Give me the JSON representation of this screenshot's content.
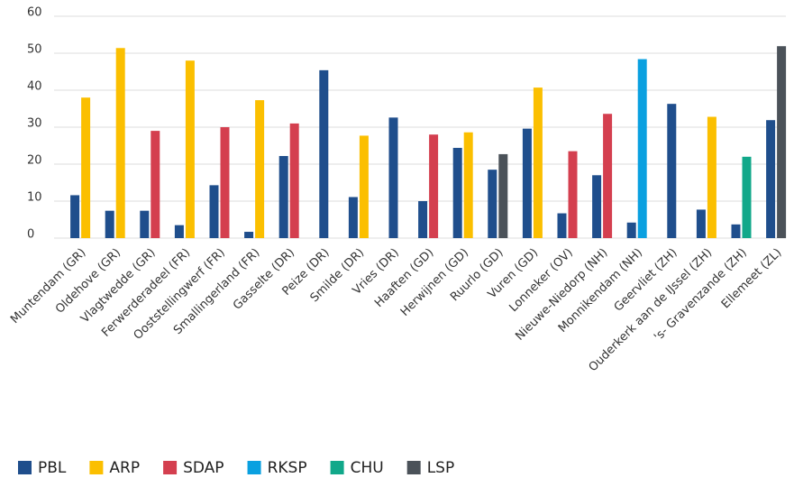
{
  "chart_data": {
    "type": "bar",
    "categories": [
      "Muntendam (GR)",
      "Oldehove (GR)",
      "Vlagtwedde (GR)",
      "Ferwerderadeel (FR)",
      "Ooststellingwerf (FR)",
      "Smallingerland (FR)",
      "Gasselte (DR)",
      "Peize (DR)",
      "Smilde (DR)",
      "Vries (DR)",
      "Haaften (GD)",
      "Herwijnen (GD)",
      "Ruurlo (GD)",
      "Vuren (GD)",
      "Lonneker (OV)",
      "Nieuwe-Niedorp (NH)",
      "Monnikendam (NH)",
      "Geervliet (ZH)",
      "Ouderkerk aan de IJssel (ZH)",
      "'s- Gravenzande (ZH)",
      "Ellemeet (ZL)"
    ],
    "series": [
      {
        "name": "PBL",
        "color": "#1f4e8c",
        "values": [
          11.6,
          7.4,
          7.4,
          3.5,
          14.3,
          1.7,
          22.2,
          45.4,
          11.1,
          32.6,
          10,
          24.4,
          18.5,
          29.6,
          6.7,
          17,
          4.2,
          36.3,
          7.7,
          3.7,
          31.9
        ]
      },
      {
        "name": "ARP",
        "color": "#fbbf00",
        "values": [
          38,
          51.4,
          null,
          48,
          null,
          37.3,
          null,
          null,
          27.7,
          null,
          null,
          28.6,
          null,
          40.7,
          null,
          null,
          null,
          null,
          32.8,
          null,
          null
        ]
      },
      {
        "name": "SDAP",
        "color": "#d43f4f",
        "values": [
          null,
          null,
          29,
          null,
          30,
          null,
          31,
          null,
          null,
          null,
          28,
          null,
          null,
          null,
          23.5,
          33.6,
          null,
          null,
          null,
          null,
          null
        ]
      },
      {
        "name": "RKSP",
        "color": "#0aa0e0",
        "values": [
          null,
          null,
          null,
          null,
          null,
          null,
          null,
          null,
          null,
          null,
          null,
          null,
          null,
          null,
          null,
          null,
          48.4,
          null,
          null,
          null,
          null
        ]
      },
      {
        "name": "CHU",
        "color": "#11a88a",
        "values": [
          null,
          null,
          null,
          null,
          null,
          null,
          null,
          null,
          null,
          null,
          null,
          null,
          null,
          null,
          null,
          null,
          null,
          null,
          null,
          22,
          null
        ]
      },
      {
        "name": "LSP",
        "color": "#4b5259",
        "values": [
          null,
          null,
          null,
          null,
          null,
          null,
          null,
          null,
          null,
          null,
          null,
          null,
          22.7,
          null,
          null,
          null,
          null,
          null,
          null,
          null,
          51.9
        ]
      }
    ],
    "ylim": [
      0,
      60
    ],
    "yticks": [
      0,
      10,
      20,
      30,
      40,
      50,
      60
    ],
    "grid": true,
    "legend": "bottom"
  }
}
